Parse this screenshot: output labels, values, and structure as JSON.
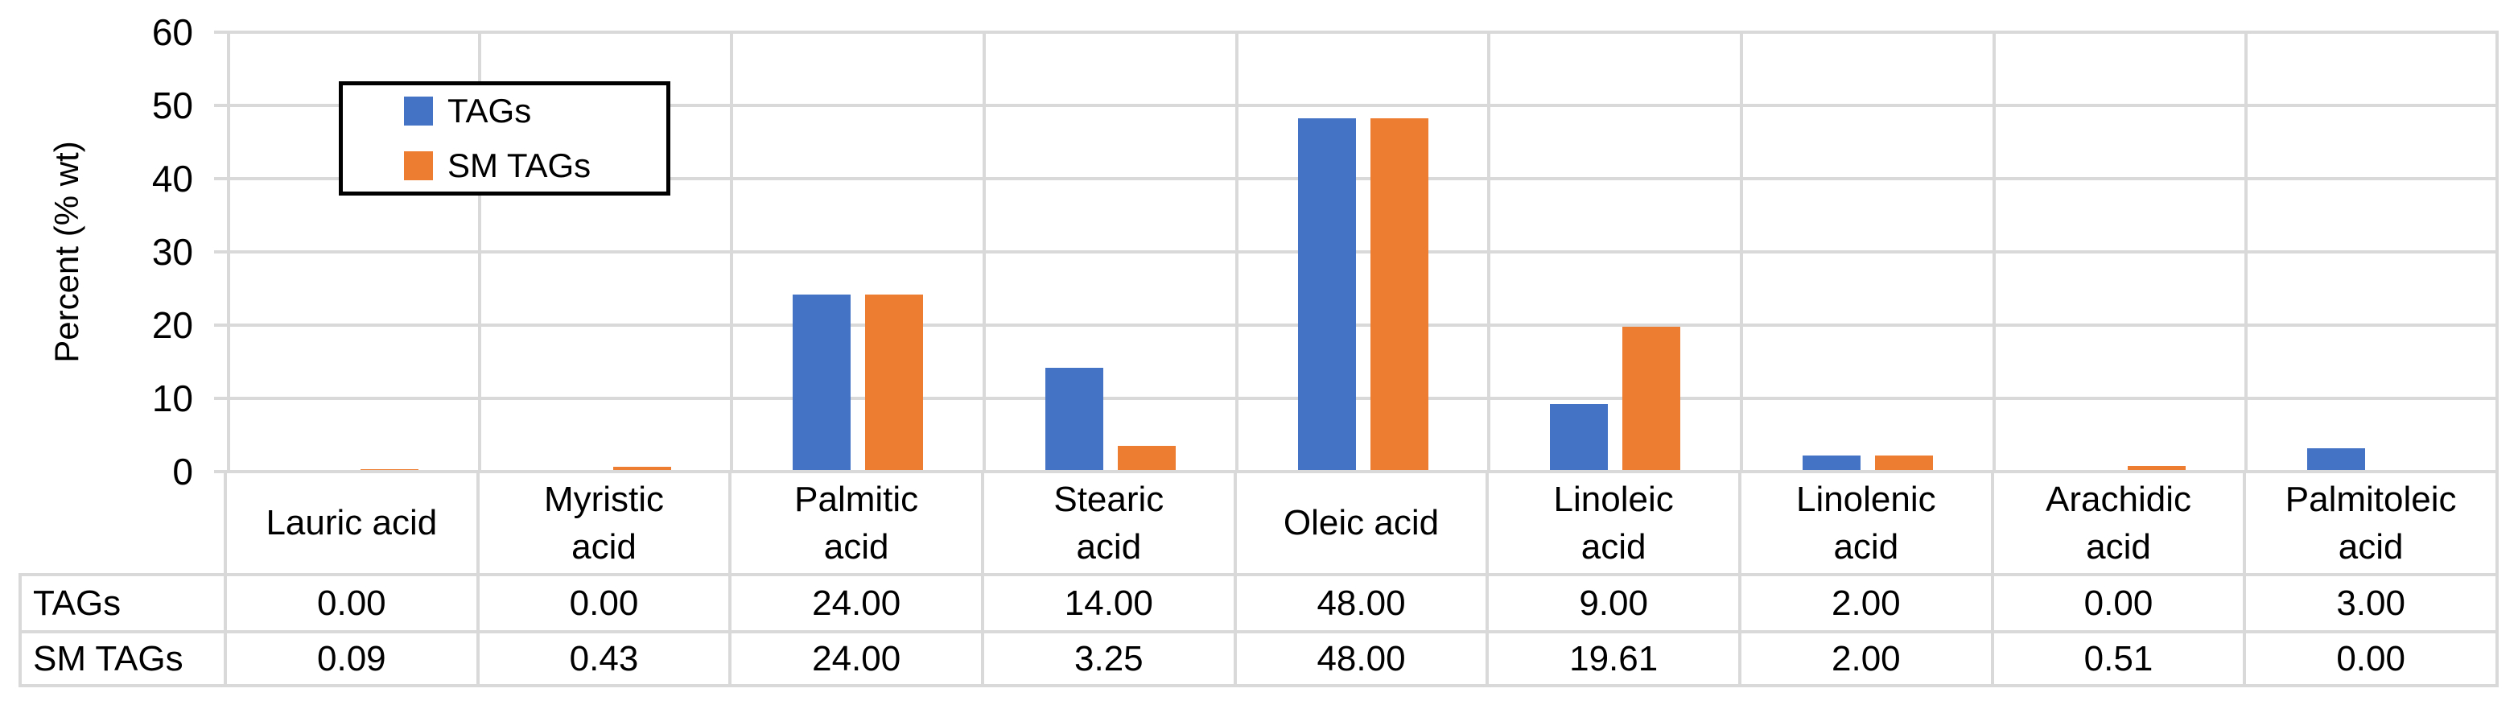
{
  "chart_data": {
    "type": "bar",
    "title": "",
    "categories": [
      "Lauric acid",
      "Myristic acid",
      "Palmitic acid",
      "Stearic acid",
      "Oleic acid",
      "Linoleic acid",
      "Linolenic acid",
      "Arachidic acid",
      "Palmitoleic acid"
    ],
    "categories_wrapped": [
      "Lauric acid",
      "Myristic\nacid",
      "Palmitic\nacid",
      "Stearic\nacid",
      "Oleic acid",
      "Linoleic\nacid",
      "Linolenic\nacid",
      "Arachidic\nacid",
      "Palmitoleic\nacid"
    ],
    "series": [
      {
        "name": "TAGs",
        "color": "#4472C4",
        "values": [
          0.0,
          0.0,
          24.0,
          14.0,
          48.0,
          9.0,
          2.0,
          0.0,
          3.0
        ],
        "table_display": [
          "0.00",
          "0.00",
          "24.00",
          "14.00",
          "48.00",
          "9.00",
          "2.00",
          "0.00",
          "3.00"
        ]
      },
      {
        "name": "SM TAGs",
        "color": "#ED7D31",
        "values": [
          0.09,
          0.43,
          24.0,
          3.25,
          48.0,
          19.61,
          2.0,
          0.51,
          0.0
        ],
        "table_display": [
          "0.09",
          "0.43",
          "24.00",
          "3.25",
          "48.00",
          "19.61",
          "2.00",
          "0.51",
          "0.00"
        ]
      }
    ],
    "xlabel": "",
    "ylabel": "Percent (% wt)",
    "ylim": [
      0,
      60
    ],
    "yticks": [
      0,
      10,
      20,
      30,
      40,
      50,
      60
    ],
    "grid": true,
    "legend_position": "inside-top-left",
    "legend_items": [
      "TAGs",
      "SM TAGs"
    ],
    "data_table_visible": true
  },
  "colors": {
    "tags_blue": "#4472C4",
    "sm_tags_orange": "#ED7D31",
    "gridline": "#D9D9D9",
    "legend_border": "#000000",
    "text": "#000000",
    "background": "#FFFFFF"
  }
}
